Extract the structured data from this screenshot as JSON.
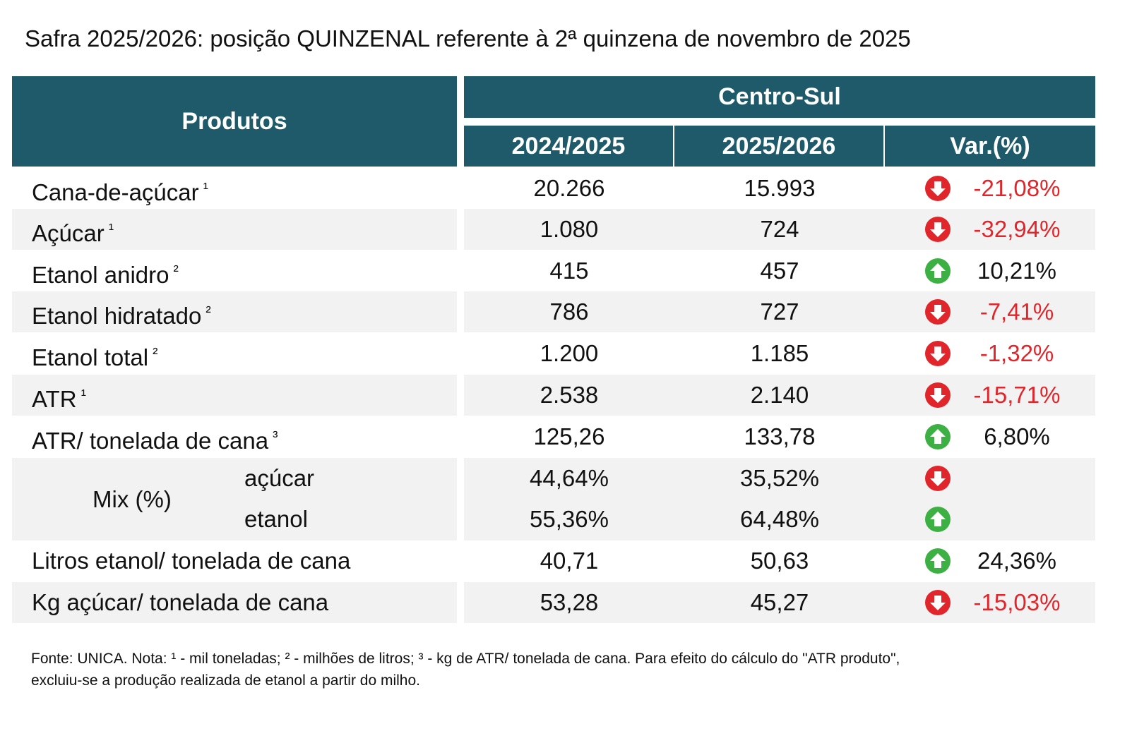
{
  "title": "Safra 2025/2026: posição QUINZENAL referente à 2ª quinzena de novembro de 2025",
  "header": {
    "products": "Produtos",
    "region": "Centro-Sul",
    "col1": "2024/2025",
    "col2": "2025/2026",
    "col3": "Var.(%)"
  },
  "rows": [
    {
      "name": "Cana-de-açúcar",
      "note": "¹",
      "v1": "20.266",
      "v2": "15.993",
      "var": "-21,08%"
    },
    {
      "name": "Açúcar",
      "note": "¹",
      "v1": "1.080",
      "v2": "724",
      "var": "-32,94%"
    },
    {
      "name": "Etanol anidro",
      "note": "²",
      "v1": "415",
      "v2": "457",
      "var": "10,21%"
    },
    {
      "name": "Etanol hidratado",
      "note": "²",
      "v1": "786",
      "v2": "727",
      "var": "-7,41%"
    },
    {
      "name": "Etanol total",
      "note": "²",
      "v1": "1.200",
      "v2": "1.185",
      "var": "-1,32%"
    },
    {
      "name": "ATR",
      "note": "¹",
      "v1": "2.538",
      "v2": "2.140",
      "var": "-15,71%"
    },
    {
      "name": "ATR/ tonelada de cana",
      "note": "³",
      "v1": "125,26",
      "v2": "133,78",
      "var": "6,80%"
    }
  ],
  "mix": {
    "label": "Mix (%)",
    "parts": [
      {
        "name": "açúcar",
        "v1": "44,64%",
        "v2": "35,52%"
      },
      {
        "name": "etanol",
        "v1": "55,36%",
        "v2": "64,48%"
      }
    ]
  },
  "rows_after": [
    {
      "name": "Litros etanol/ tonelada de cana",
      "v1": "40,71",
      "v2": "50,63",
      "var": "24,36%"
    },
    {
      "name": "Kg açúcar/ tonelada de cana",
      "v1": "53,28",
      "v2": "45,27",
      "var": "-15,03%"
    }
  ],
  "footnote": [
    "Fonte: UNICA. Nota: ¹ - mil toneladas; ² - milhões de litros; ³ - kg de ATR/ tonelada de cana. Para efeito do cálculo do \"ATR produto\",",
    "excluiu-se a produção realizada de etanol a partir do milho."
  ]
}
